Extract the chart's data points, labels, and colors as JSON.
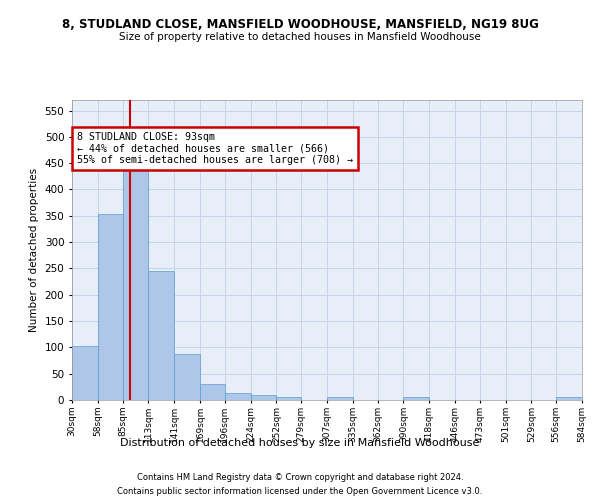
{
  "title": "8, STUDLAND CLOSE, MANSFIELD WOODHOUSE, MANSFIELD, NG19 8UG",
  "subtitle": "Size of property relative to detached houses in Mansfield Woodhouse",
  "xlabel": "Distribution of detached houses by size in Mansfield Woodhouse",
  "ylabel": "Number of detached properties",
  "footnote1": "Contains HM Land Registry data © Crown copyright and database right 2024.",
  "footnote2": "Contains public sector information licensed under the Open Government Licence v3.0.",
  "bar_color": "#aec6e8",
  "bar_edge_color": "#5a9ed4",
  "grid_color": "#c8d4e8",
  "bg_color": "#e8eef8",
  "annotation_box_color": "#cc0000",
  "vline_color": "#cc0000",
  "bin_edges": [
    30,
    58,
    85,
    113,
    141,
    169,
    196,
    224,
    252,
    279,
    307,
    335,
    362,
    390,
    418,
    446,
    473,
    501,
    529,
    556,
    584
  ],
  "bin_labels": [
    "30sqm",
    "58sqm",
    "85sqm",
    "113sqm",
    "141sqm",
    "169sqm",
    "196sqm",
    "224sqm",
    "252sqm",
    "279sqm",
    "307sqm",
    "335sqm",
    "362sqm",
    "390sqm",
    "418sqm",
    "446sqm",
    "473sqm",
    "501sqm",
    "529sqm",
    "556sqm",
    "584sqm"
  ],
  "bar_heights": [
    103,
    353,
    449,
    245,
    87,
    30,
    13,
    9,
    6,
    0,
    5,
    0,
    0,
    6,
    0,
    0,
    0,
    0,
    0,
    5
  ],
  "property_size": 93,
  "annotation_text": "8 STUDLAND CLOSE: 93sqm\n← 44% of detached houses are smaller (566)\n55% of semi-detached houses are larger (708) →",
  "ylim": [
    0,
    570
  ],
  "yticks": [
    0,
    50,
    100,
    150,
    200,
    250,
    300,
    350,
    400,
    450,
    500,
    550
  ]
}
